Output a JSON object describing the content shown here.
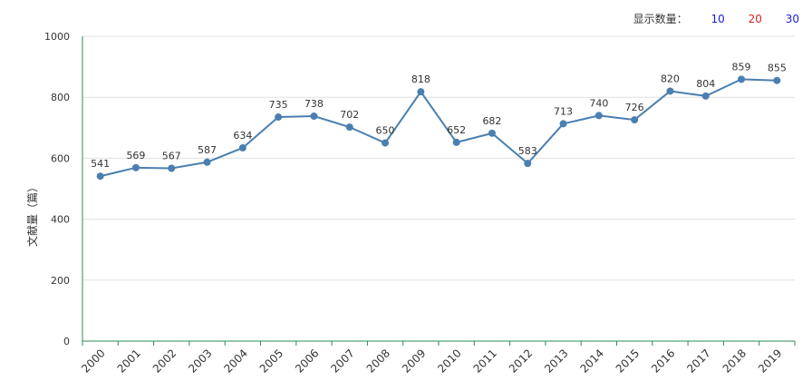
{
  "controls": {
    "label": "显示数量：",
    "options": [
      {
        "text": "10",
        "color": "#1a1adb"
      },
      {
        "text": "20",
        "color": "#d9231e"
      },
      {
        "text": "30",
        "color": "#1a1adb"
      }
    ]
  },
  "chart_data": {
    "type": "line",
    "title": "",
    "xlabel": "",
    "ylabel": "文献量（篇）",
    "ylim": [
      0,
      1000
    ],
    "yticks": [
      0,
      200,
      400,
      600,
      800,
      1000
    ],
    "grid": true,
    "line_color": "#4a7fb0",
    "categories": [
      "2000",
      "2001",
      "2002",
      "2003",
      "2004",
      "2005",
      "2006",
      "2007",
      "2008",
      "2009",
      "2010",
      "2011",
      "2012",
      "2013",
      "2014",
      "2015",
      "2016",
      "2017",
      "2018",
      "2019"
    ],
    "values": [
      541,
      569,
      567,
      587,
      634,
      735,
      738,
      702,
      650,
      818,
      652,
      682,
      583,
      713,
      740,
      726,
      820,
      804,
      859,
      855
    ]
  }
}
